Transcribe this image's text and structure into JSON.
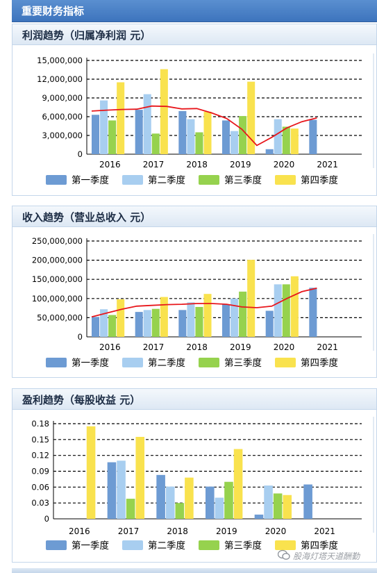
{
  "header": {
    "title": "重要财务指标"
  },
  "watermark": {
    "text": "股海灯塔天道酬勤"
  },
  "colors": {
    "q1": "#6d9bd3",
    "q2": "#a8cef0",
    "q3": "#96d24e",
    "q4": "#f9e24e",
    "trend": "#e8161b",
    "grid": "#000000"
  },
  "legend": [
    "第一季度",
    "第二季度",
    "第三季度",
    "第四季度"
  ],
  "chart_data": [
    {
      "type": "bar",
      "title": "利润趋势（归属净利润 元）",
      "categories": [
        "2016",
        "2017",
        "2018",
        "2019",
        "2020",
        "2021"
      ],
      "ylim": [
        0,
        15000000
      ],
      "yticks": [
        0,
        3000000,
        6000000,
        9000000,
        12000000,
        15000000
      ],
      "ytick_labels": [
        "0",
        "3,000,000",
        "6,000,000",
        "9,000,000",
        "12,000,000",
        "15,000,000"
      ],
      "grid": true,
      "legend_position": "bottom",
      "series": [
        {
          "name": "第一季度",
          "values": [
            6300000,
            7100000,
            6900000,
            5400000,
            800000,
            5500000
          ]
        },
        {
          "name": "第二季度",
          "values": [
            8600000,
            9600000,
            5600000,
            3700000,
            5600000,
            null
          ]
        },
        {
          "name": "第三季度",
          "values": [
            5400000,
            3300000,
            3500000,
            6100000,
            4400000,
            null
          ]
        },
        {
          "name": "第四季度",
          "values": [
            11500000,
            13600000,
            6800000,
            11600000,
            4100000,
            null
          ]
        }
      ],
      "trend": [
        6900000,
        7050000,
        7150000,
        7200000,
        7700000,
        7650000,
        7250000,
        7300000,
        6600000,
        5700000,
        4000000,
        1400000,
        2700000,
        4200000,
        5200000,
        5800000
      ]
    },
    {
      "type": "bar",
      "title": "收入趋势（营业总收入 元）",
      "categories": [
        "2016",
        "2017",
        "2018",
        "2019",
        "2020",
        "2021"
      ],
      "ylim": [
        0,
        250000000
      ],
      "yticks": [
        0,
        50000000,
        100000000,
        150000000,
        200000000,
        250000000
      ],
      "ytick_labels": [
        "0",
        "50,000,000",
        "100,000,000",
        "150,000,000",
        "200,000,000",
        "250,000,000"
      ],
      "grid": true,
      "legend_position": "bottom",
      "series": [
        {
          "name": "第一季度",
          "values": [
            52000000,
            65000000,
            70000000,
            85000000,
            68000000,
            128000000
          ]
        },
        {
          "name": "第二季度",
          "values": [
            72000000,
            70000000,
            90000000,
            100000000,
            137000000,
            null
          ]
        },
        {
          "name": "第三季度",
          "values": [
            57000000,
            73000000,
            78000000,
            118000000,
            137000000,
            null
          ]
        },
        {
          "name": "第四季度",
          "values": [
            98000000,
            104000000,
            112000000,
            201000000,
            158000000,
            null
          ]
        }
      ],
      "trend": [
        52000000,
        62000000,
        72000000,
        80000000,
        82000000,
        84000000,
        85000000,
        87000000,
        87000000,
        85000000,
        78000000,
        76000000,
        80000000,
        100000000,
        118000000,
        127000000
      ]
    },
    {
      "type": "bar",
      "title": "盈利趋势（每股收益 元）",
      "categories": [
        "2016",
        "2017",
        "2018",
        "2019",
        "2020",
        "2021"
      ],
      "ylim": [
        0,
        0.18
      ],
      "yticks": [
        0,
        0.03,
        0.06,
        0.09,
        0.12,
        0.15,
        0.18
      ],
      "ytick_labels": [
        "0",
        "0.03",
        "0.06",
        "0.09",
        "0.12",
        "0.15",
        "0.18"
      ],
      "grid": true,
      "legend_position": "bottom",
      "series": [
        {
          "name": "第一季度",
          "values": [
            null,
            0.107,
            0.083,
            0.061,
            0.008,
            0.065
          ]
        },
        {
          "name": "第二季度",
          "values": [
            null,
            0.11,
            0.061,
            0.04,
            0.063,
            null
          ]
        },
        {
          "name": "第三季度",
          "values": [
            null,
            0.038,
            0.03,
            0.07,
            0.048,
            null
          ]
        },
        {
          "name": "第四季度",
          "values": [
            0.175,
            0.155,
            0.078,
            0.132,
            0.045,
            null
          ]
        }
      ]
    }
  ]
}
